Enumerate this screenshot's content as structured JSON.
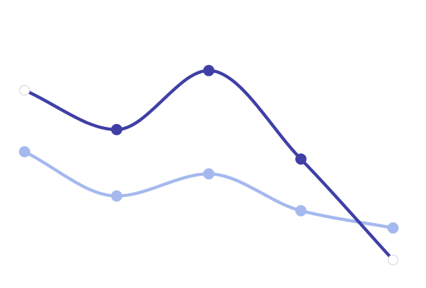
{
  "chart_data": {
    "type": "line",
    "smooth": true,
    "grid": false,
    "axes_visible": false,
    "legend": "none",
    "x": [
      1,
      2,
      3,
      4,
      5
    ],
    "ylim": [
      0,
      100
    ],
    "series": [
      {
        "color": "#3f3fa6",
        "values": [
          75,
          59,
          83,
          47,
          6
        ],
        "point_styles": [
          "hollow",
          "filled",
          "filled",
          "filled",
          "hollow"
        ]
      },
      {
        "color": "#a5b9ef",
        "values": [
          50,
          32,
          41,
          26,
          19
        ],
        "point_styles": [
          "filled",
          "filled",
          "filled",
          "filled",
          "filled"
        ]
      }
    ]
  }
}
